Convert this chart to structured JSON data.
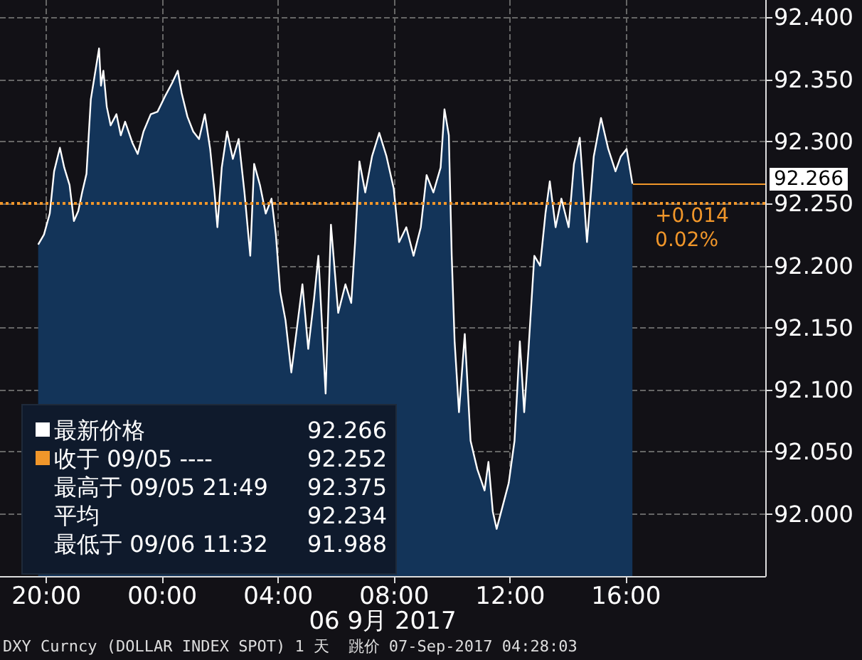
{
  "chart_data": {
    "type": "area",
    "xlabel": "06 9月 2017",
    "x": [
      "2017-09-05T19:43",
      "2017-09-05T19:55",
      "2017-09-05T20:07",
      "2017-09-05T20:16",
      "2017-09-05T20:28",
      "2017-09-05T20:37",
      "2017-09-05T20:48",
      "2017-09-05T20:57",
      "2017-09-05T21:06",
      "2017-09-05T21:14",
      "2017-09-05T21:23",
      "2017-09-05T21:32",
      "2017-09-05T21:49",
      "2017-09-05T21:53",
      "2017-09-05T21:58",
      "2017-09-05T22:05",
      "2017-09-05T22:13",
      "2017-09-05T22:25",
      "2017-09-05T22:34",
      "2017-09-05T22:43",
      "2017-09-05T22:58",
      "2017-09-05T23:09",
      "2017-09-05T23:21",
      "2017-09-05T23:36",
      "2017-09-05T23:50",
      "2017-09-06T00:05",
      "2017-09-06T00:20",
      "2017-09-06T00:32",
      "2017-09-06T00:40",
      "2017-09-06T00:52",
      "2017-09-06T01:04",
      "2017-09-06T01:16",
      "2017-09-06T01:28",
      "2017-09-06T01:39",
      "2017-09-06T01:48",
      "2017-09-06T01:54",
      "2017-09-06T02:03",
      "2017-09-06T02:14",
      "2017-09-06T02:26",
      "2017-09-06T02:38",
      "2017-09-06T02:50",
      "2017-09-06T03:02",
      "2017-09-06T03:10",
      "2017-09-06T03:22",
      "2017-09-06T03:34",
      "2017-09-06T03:46",
      "2017-09-06T03:55",
      "2017-09-06T04:04",
      "2017-09-06T04:15",
      "2017-09-06T04:27",
      "2017-09-06T04:39",
      "2017-09-06T04:50",
      "2017-09-06T05:02",
      "2017-09-06T05:14",
      "2017-09-06T05:23",
      "2017-09-06T05:38",
      "2017-09-06T05:49",
      "2017-09-06T06:04",
      "2017-09-06T06:19",
      "2017-09-06T06:31",
      "2017-09-06T06:39",
      "2017-09-06T06:48",
      "2017-09-06T07:00",
      "2017-09-06T07:14",
      "2017-09-06T07:29",
      "2017-09-06T07:44",
      "2017-09-06T07:59",
      "2017-09-06T08:10",
      "2017-09-06T08:25",
      "2017-09-06T08:40",
      "2017-09-06T08:55",
      "2017-09-06T09:07",
      "2017-09-06T09:21",
      "2017-09-06T09:36",
      "2017-09-06T09:44",
      "2017-09-06T09:53",
      "2017-09-06T09:59",
      "2017-09-06T10:05",
      "2017-09-06T10:14",
      "2017-09-06T10:26",
      "2017-09-06T10:38",
      "2017-09-06T10:52",
      "2017-09-06T11:07",
      "2017-09-06T11:15",
      "2017-09-06T11:24",
      "2017-09-06T11:32",
      "2017-09-06T11:57",
      "2017-09-06T12:09",
      "2017-09-06T12:20",
      "2017-09-06T12:29",
      "2017-09-06T12:38",
      "2017-09-06T12:50",
      "2017-09-06T13:02",
      "2017-09-06T13:13",
      "2017-09-06T13:22",
      "2017-09-06T13:34",
      "2017-09-06T13:46",
      "2017-09-06T14:01",
      "2017-09-06T14:12",
      "2017-09-06T14:24",
      "2017-09-06T14:39",
      "2017-09-06T14:53",
      "2017-09-06T15:08",
      "2017-09-06T15:23",
      "2017-09-06T15:38",
      "2017-09-06T15:49",
      "2017-09-06T16:01",
      "2017-09-06T16:13"
    ],
    "series": [
      {
        "color": "#ffffff",
        "values": [
          92.217,
          92.225,
          92.242,
          92.276,
          92.295,
          92.279,
          92.265,
          92.236,
          92.244,
          92.259,
          92.274,
          92.334,
          92.375,
          92.345,
          92.357,
          92.328,
          92.313,
          92.322,
          92.305,
          92.316,
          92.299,
          92.29,
          92.308,
          92.322,
          92.324,
          92.336,
          92.347,
          92.357,
          92.339,
          92.32,
          92.308,
          92.302,
          92.322,
          92.294,
          92.259,
          92.231,
          92.279,
          92.308,
          92.286,
          92.302,
          92.259,
          92.208,
          92.282,
          92.265,
          92.242,
          92.254,
          92.225,
          92.179,
          92.156,
          92.114,
          92.151,
          92.185,
          92.133,
          92.173,
          92.208,
          92.097,
          92.233,
          92.162,
          92.185,
          92.17,
          92.219,
          92.284,
          92.259,
          92.288,
          92.307,
          92.288,
          92.262,
          92.219,
          92.231,
          92.208,
          92.231,
          92.273,
          92.259,
          92.279,
          92.326,
          92.305,
          92.208,
          92.139,
          92.082,
          92.145,
          92.059,
          92.036,
          92.019,
          92.042,
          92.002,
          91.988,
          92.025,
          92.059,
          92.139,
          92.082,
          92.133,
          92.208,
          92.2,
          92.242,
          92.268,
          92.231,
          92.254,
          92.231,
          92.282,
          92.303,
          92.219,
          92.288,
          92.319,
          92.294,
          92.276,
          92.288,
          92.294,
          92.266
        ]
      }
    ],
    "xlim": [
      "2017-09-05T18:24",
      "2017-09-06T20:48"
    ],
    "xticks": [
      {
        "value": "2017-09-05T20:00",
        "label": "20:00"
      },
      {
        "value": "2017-09-06T00:00",
        "label": "00:00"
      },
      {
        "value": "2017-09-06T04:00",
        "label": "04:00"
      },
      {
        "value": "2017-09-06T08:00",
        "label": "08:00"
      },
      {
        "value": "2017-09-06T12:00",
        "label": "12:00"
      },
      {
        "value": "2017-09-06T16:00",
        "label": "16:00"
      }
    ],
    "ylim": [
      91.95,
      92.414
    ],
    "yticks": [
      {
        "value": 92.0,
        "label": "92.000"
      },
      {
        "value": 92.05,
        "label": "92.050"
      },
      {
        "value": 92.1,
        "label": "92.100"
      },
      {
        "value": 92.15,
        "label": "92.150"
      },
      {
        "value": 92.2,
        "label": "92.200"
      },
      {
        "value": 92.25,
        "label": "92.250"
      },
      {
        "value": 92.3,
        "label": "92.300"
      },
      {
        "value": 92.35,
        "label": "92.350"
      },
      {
        "value": 92.4,
        "label": "92.400"
      }
    ],
    "grid": true,
    "ref_lines": [
      {
        "axis": "y",
        "value": 92.252,
        "color": "#f0962a",
        "line_style": "dotted"
      }
    ],
    "annotations": [
      "最新价格 92.266",
      "收于 09/05 ---- 92.252",
      "最高于 09/05 21:49 92.375",
      "平均 92.234",
      "最低于 09/06 11:32 91.988",
      {
        "text": "+0.014\n0.02%",
        "x": "2017-09-06T17:00",
        "y": 92.252
      },
      "92.266",
      "DXY Curncy (DOLLAR INDEX SPOT) 1 天  跳价 07-Sep-2017 04:28:03"
    ]
  }
}
